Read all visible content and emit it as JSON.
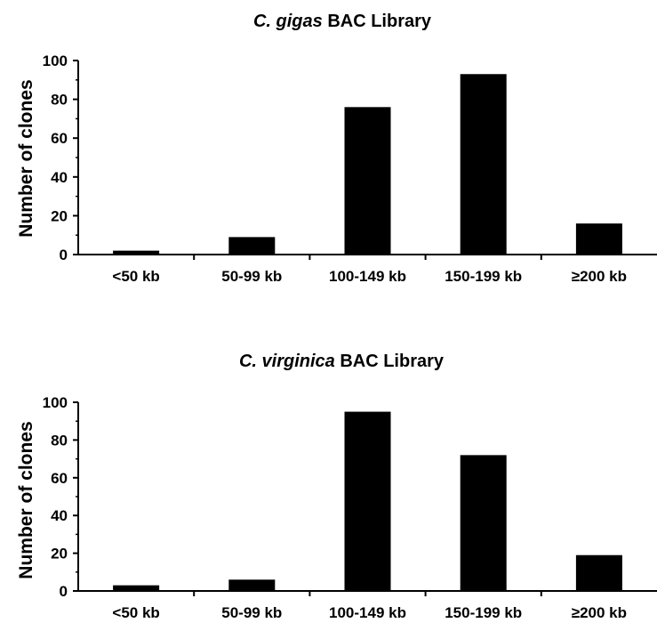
{
  "chart_data": [
    {
      "type": "bar",
      "title_italic": "C. gigas",
      "title_rest": "BAC Library",
      "ylabel": "Number of clones",
      "xlabel": "",
      "ylim": [
        0,
        100
      ],
      "yticks": [
        0,
        20,
        40,
        60,
        80,
        100
      ],
      "categories": [
        "<50 kb",
        "50-99 kb",
        "100-149 kb",
        "150-199 kb",
        "≥200 kb"
      ],
      "values": [
        2,
        9,
        76,
        93,
        16
      ],
      "bar_color": "#000000"
    },
    {
      "type": "bar",
      "title_italic": "C. virginica",
      "title_rest": "BAC Library",
      "ylabel": "Number of clones",
      "xlabel": "",
      "ylim": [
        0,
        100
      ],
      "yticks": [
        0,
        20,
        40,
        60,
        80,
        100
      ],
      "categories": [
        "<50 kb",
        "50-99 kb",
        "100-149 kb",
        "150-199 kb",
        "≥200 kb"
      ],
      "values": [
        3,
        6,
        95,
        72,
        19
      ],
      "bar_color": "#000000"
    }
  ]
}
